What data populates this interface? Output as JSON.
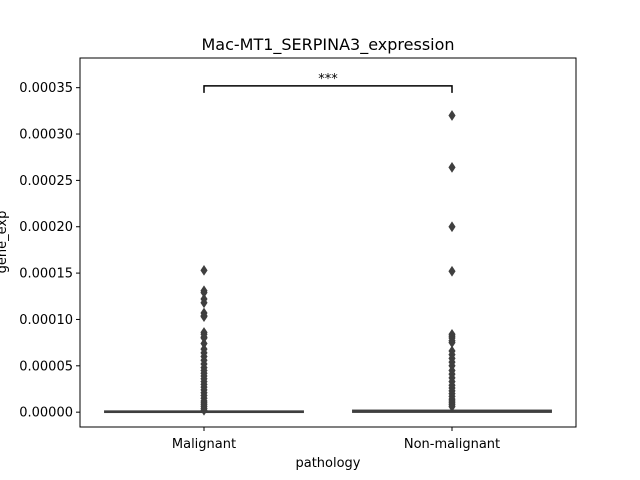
{
  "chart_data": {
    "type": "box",
    "title": "Mac-MT1_SERPINA3_expression",
    "xlabel": "pathology",
    "ylabel": "gene_exp",
    "categories": [
      "Malignant",
      "Non-malignant"
    ],
    "ylim": [
      -1.6e-05,
      0.000382
    ],
    "yticks": [
      "0.00000",
      "0.00005",
      "0.00010",
      "0.00015",
      "0.00020",
      "0.00025",
      "0.00030",
      "0.00035"
    ],
    "ytick_values": [
      0,
      5e-05,
      0.0001,
      0.00015,
      0.0002,
      0.00025,
      0.0003,
      0.00035
    ],
    "grid": false,
    "legend": "none",
    "series": [
      {
        "category": "Malignant",
        "q1": 0.0,
        "median": 0.0,
        "q3": 5e-07,
        "whisker_low": 0.0,
        "whisker_high": 1e-06,
        "outliers": [
          0.000153,
          0.000131,
          0.000129,
          0.000122,
          0.000118,
          0.000107,
          0.000104,
          0.000103,
          8.6e-05,
          8.4e-05,
          8.1e-05,
          8e-05,
          7.4e-05,
          6.8e-05,
          6.4e-05,
          6e-05,
          5.6e-05,
          5.2e-05,
          4.8e-05,
          4.5e-05,
          4.2e-05,
          3.9e-05,
          3.6e-05,
          3.3e-05,
          3e-05,
          2.7e-05,
          2.4e-05,
          2.1e-05,
          1.8e-05,
          1.5e-05,
          1.2e-05,
          1e-05,
          8e-06,
          6e-06,
          4e-06,
          2e-06
        ]
      },
      {
        "category": "Non-malignant",
        "q1": 0.0,
        "median": 5e-07,
        "q3": 2e-06,
        "whisker_low": 0.0,
        "whisker_high": 5e-06,
        "outliers": [
          0.00032,
          0.000264,
          0.0002,
          0.000152,
          8.4e-05,
          8.2e-05,
          8e-05,
          7.7e-05,
          7.5e-05,
          6.6e-05,
          6.2e-05,
          5.8e-05,
          5.4e-05,
          5e-05,
          4.5e-05,
          4.1e-05,
          3.7e-05,
          3.3e-05,
          2.9e-05,
          2.6e-05,
          2.3e-05,
          2e-05,
          1.7e-05,
          1.4e-05,
          1.2e-05,
          1e-05,
          8e-06,
          6e-06
        ]
      }
    ],
    "annotation": {
      "text": "***",
      "between": [
        "Malignant",
        "Non-malignant"
      ],
      "y": 0.000352
    },
    "color": "#3f3f3f"
  }
}
